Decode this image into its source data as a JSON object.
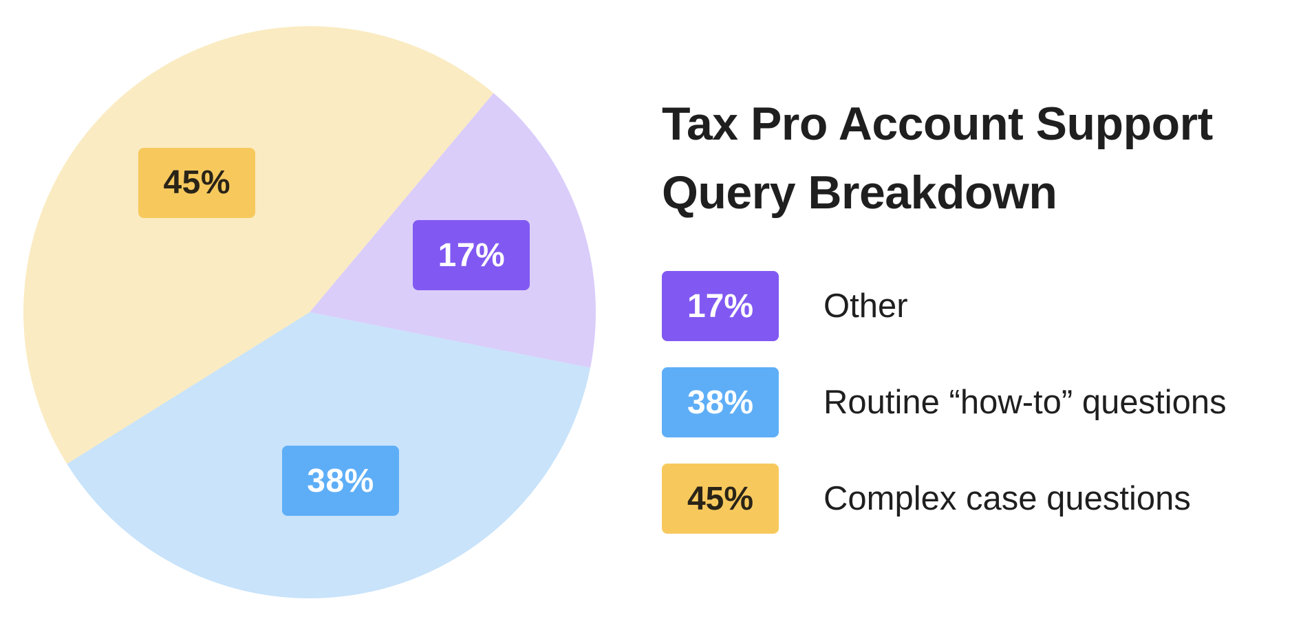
{
  "chart_data": {
    "type": "pie",
    "title": "Tax Pro Account Support Query Breakdown",
    "slices": [
      {
        "name": "Other",
        "value": 17,
        "label": "17%",
        "fill": "#dacdfa",
        "label_bg": "#8159f2",
        "label_fg": "#ffffff"
      },
      {
        "name": "Routine “how-to” questions",
        "value": 38,
        "label": "38%",
        "fill": "#c8e3fa",
        "label_bg": "#5eaef7",
        "label_fg": "#ffffff"
      },
      {
        "name": "Complex case questions",
        "value": 45,
        "label": "45%",
        "fill": "#faebc2",
        "label_bg": "#f7c95d",
        "label_fg": "#2a2418"
      }
    ],
    "legend_position": "right",
    "start_angle_deg": 40,
    "direction": "clockwise"
  },
  "title": "Tax Pro Account Support Query Breakdown"
}
